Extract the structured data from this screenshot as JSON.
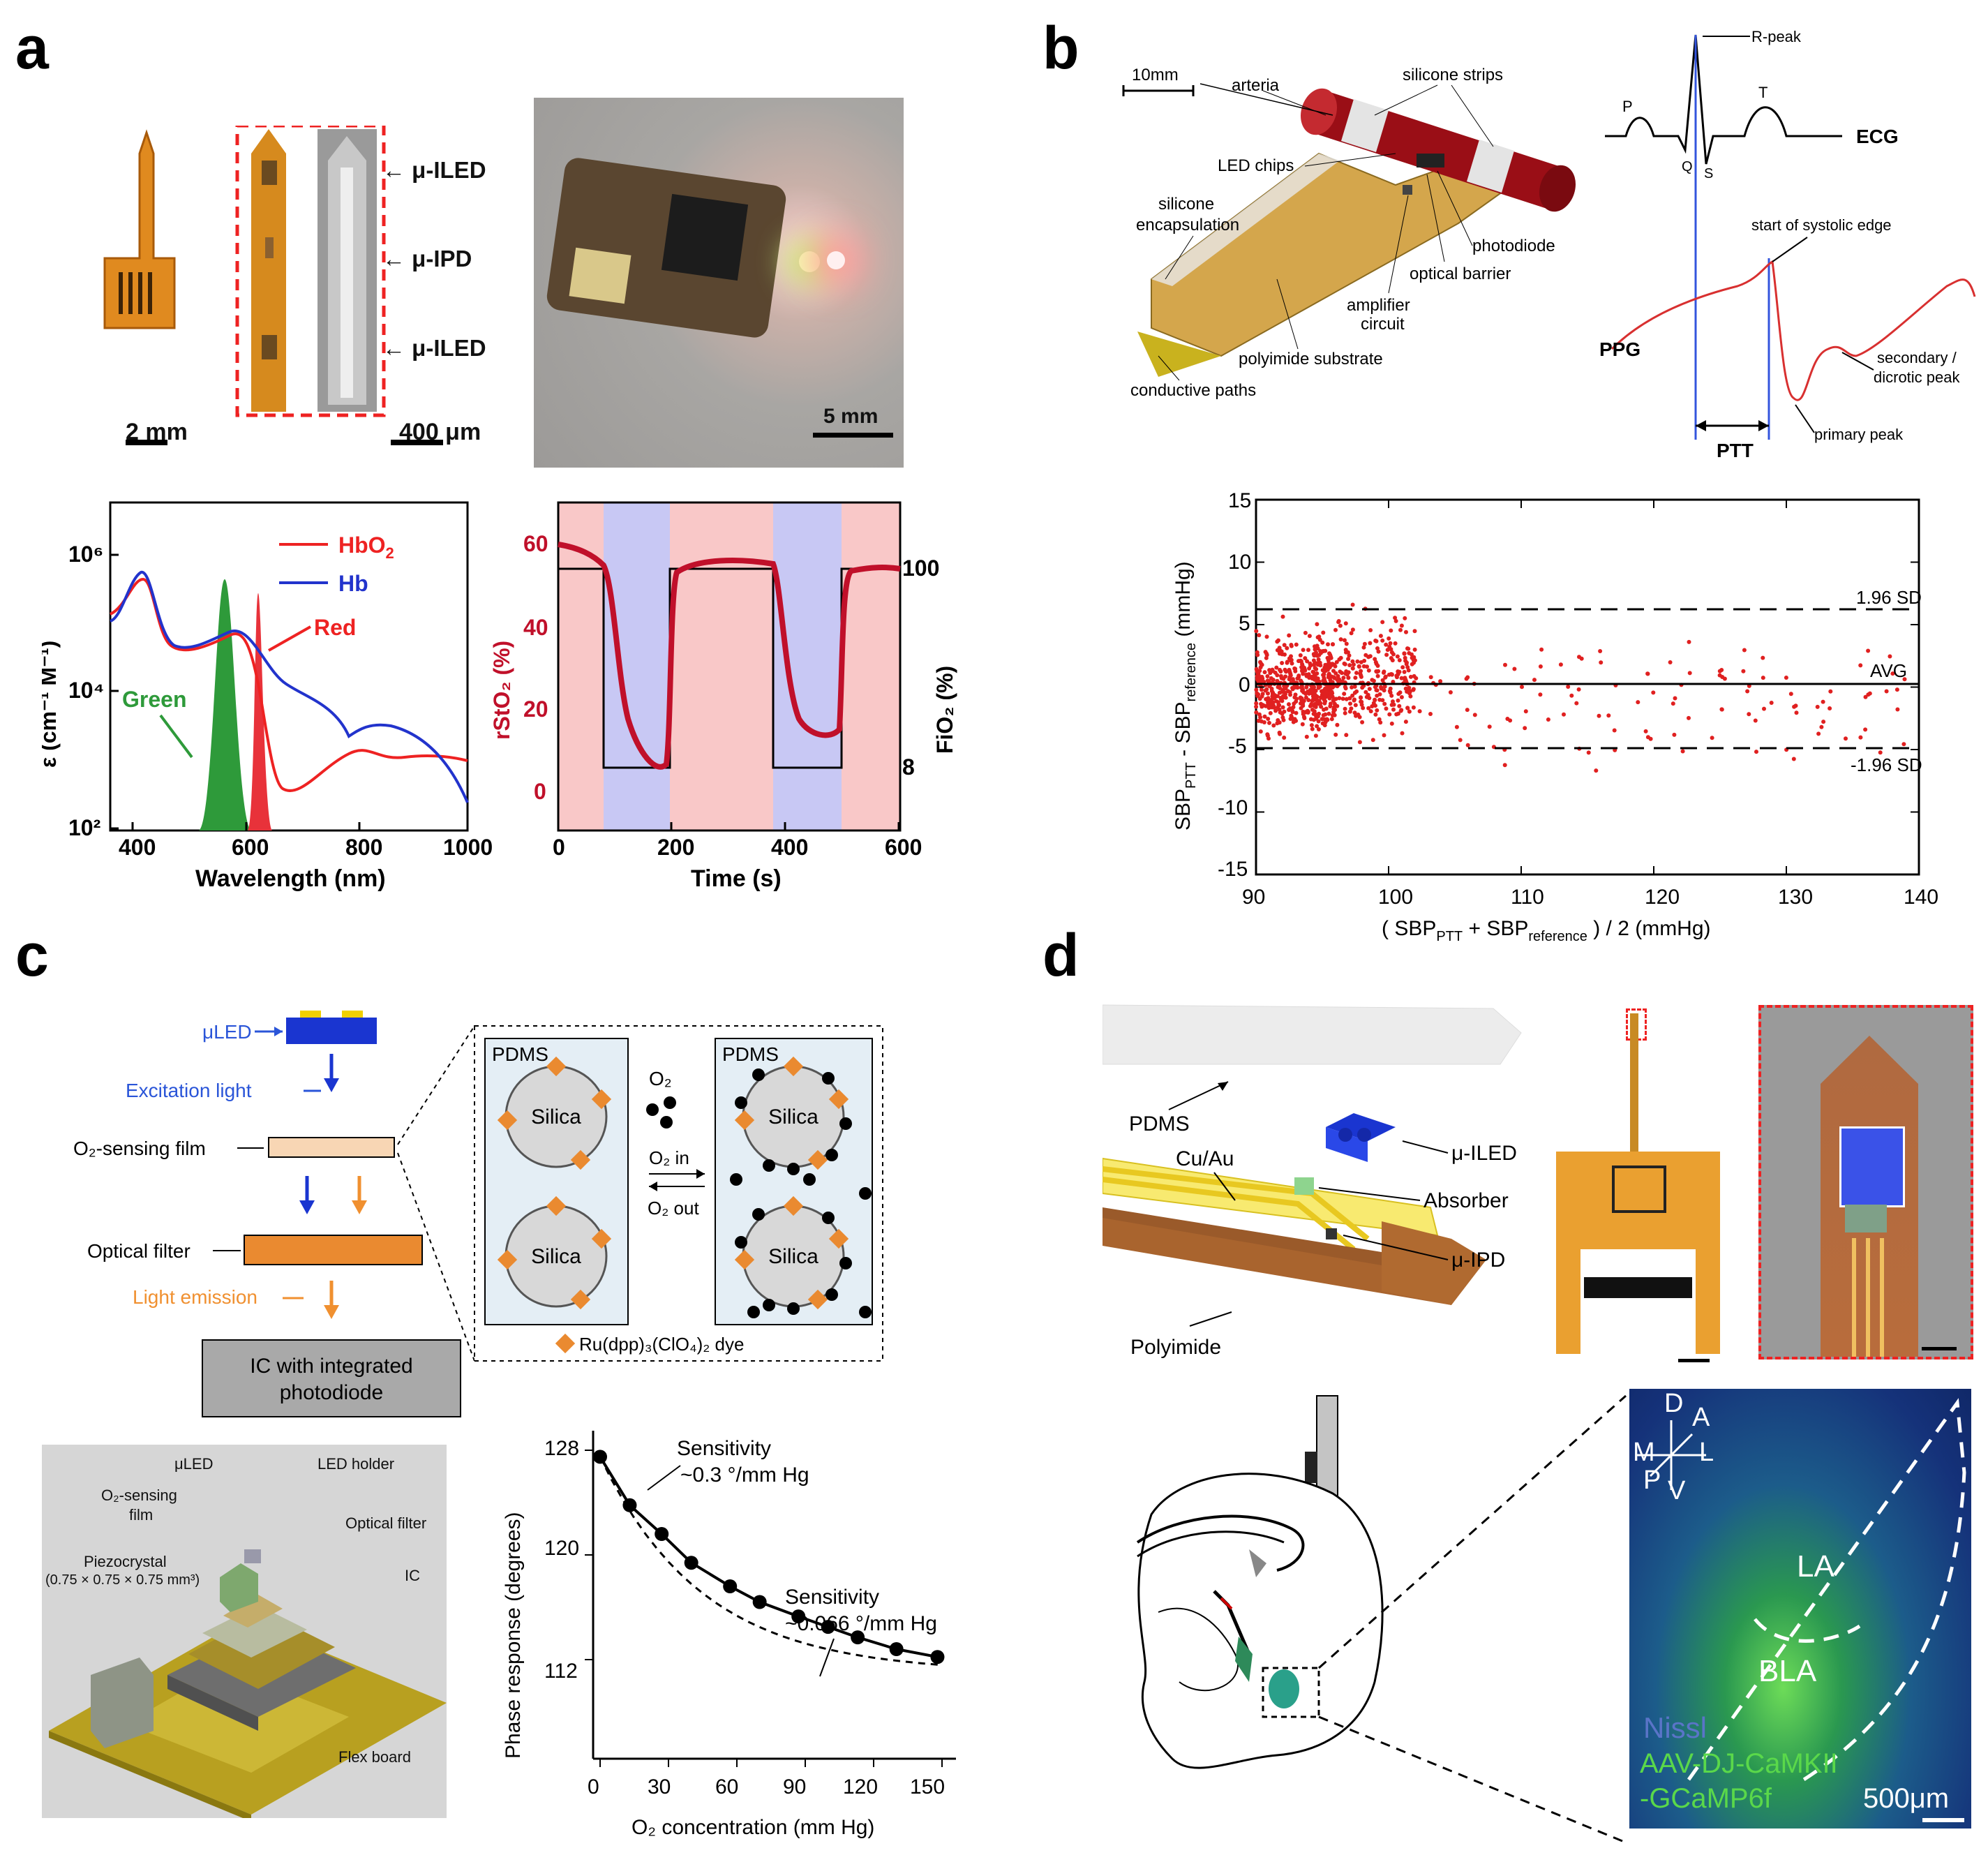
{
  "panel_labels": {
    "a": "a",
    "b": "b",
    "c": "c",
    "d": "d"
  },
  "panel_a": {
    "probe_labels": [
      "μ-ILED",
      "μ-IPD",
      "μ-ILED"
    ],
    "scale_left": "2 mm",
    "scale_mid": "400 μm",
    "scale_photo": "5 mm",
    "spectrum": {
      "legend_hbo2": "HbO",
      "legend_hbo2_sub": "2",
      "legend_hb": "Hb",
      "label_red": "Red",
      "label_green": "Green",
      "xlabel": "Wavelength (nm)",
      "ylabel": "ε (cm⁻¹ M⁻¹)",
      "xticks": [
        "400",
        "600",
        "800",
        "1000"
      ],
      "yticks": [
        "10⁶",
        "10⁴",
        "10²"
      ]
    },
    "time": {
      "xlabel": "Time (s)",
      "ylabel_left": "rStO₂ (%)",
      "ylabel_right": "FiO₂ (%)",
      "xticks": [
        "0",
        "200",
        "400",
        "600"
      ],
      "yticks_left": [
        "60",
        "40",
        "20",
        "0"
      ],
      "yticks_right": [
        "100",
        "8"
      ]
    }
  },
  "panel_b": {
    "device_labels": {
      "scale": "10mm",
      "arteria": "arteria",
      "silicone_strips": "silicone strips",
      "led_chips": "LED chips",
      "silicone_encapsulation_1": "silicone",
      "silicone_encapsulation_2": "encapsulation",
      "photodiode": "photodiode",
      "optical_barrier": "optical barrier",
      "amplifier_1": "amplifier",
      "amplifier_2": "circuit",
      "polyimide": "polyimide substrate",
      "conductive": "conductive paths"
    },
    "waveform_labels": {
      "r_peak": "R-peak",
      "p": "P",
      "q": "Q",
      "s": "S",
      "t": "T",
      "ecg": "ECG",
      "ppg": "PPG",
      "start_systolic": "start of systolic edge",
      "secondary_1": "secondary /",
      "secondary_2": "dicrotic peak",
      "primary": "primary peak",
      "ptt": "PTT"
    },
    "chart": {
      "xticks": [
        "90",
        "100",
        "110",
        "120",
        "130",
        "140"
      ],
      "yticks": [
        "15",
        "10",
        "5",
        "0",
        "-5",
        "-10",
        "-15"
      ],
      "label_upper": "1.96 SD",
      "label_avg": "AVG",
      "label_lower": "-1.96 SD",
      "xlabel": "( SBP",
      "xlabel_sub1": "PTT",
      "xlabel_mid": " + SBP",
      "xlabel_sub2": "reference",
      "xlabel_end": " ) / 2   (mmHg)",
      "ylabel": "SBP",
      "ylabel_sub1": "PTT",
      "ylabel_mid": " - SBP",
      "ylabel_sub2": "reference",
      "ylabel_end": "  (mmHg)"
    }
  },
  "panel_c": {
    "flow": {
      "uled": "μLED",
      "excitation": "Excitation light",
      "film": "O₂-sensing film",
      "filter": "Optical filter",
      "emission": "Light emission",
      "ic_1": "IC with integrated",
      "ic_2": "photodiode"
    },
    "inset": {
      "pdms": "PDMS",
      "silica": "Silica",
      "o2": "O₂",
      "o2_in": "O₂ in",
      "o2_out": "O₂ out",
      "dye": "Ru(dpp)₃(ClO₄)₂ dye"
    },
    "render_labels": {
      "uled": "μLED",
      "led_holder": "LED holder",
      "film_1": "O₂-sensing",
      "film_2": "film",
      "optical_filter": "Optical filter",
      "piezo_1": "Piezocrystal",
      "piezo_2": "(0.75 × 0.75 × 0.75 mm³)",
      "ic": "IC",
      "flex": "Flex board"
    },
    "chart": {
      "xlabel": "O₂ concentration (mm Hg)",
      "ylabel": "Phase response (degrees)",
      "xticks": [
        "0",
        "30",
        "60",
        "90",
        "120",
        "150"
      ],
      "yticks": [
        "128",
        "120",
        "112"
      ],
      "sens1_1": "Sensitivity",
      "sens1_2": "~0.3 °/mm Hg",
      "sens2_1": "Sensitivity",
      "sens2_2": "~0.066 °/mm Hg"
    }
  },
  "panel_d": {
    "labels": {
      "pdms": "PDMS",
      "cuau": "Cu/Au",
      "uiled": "μ-ILED",
      "absorber": "Absorber",
      "uipd": "μ-IPD",
      "polyimide": "Polyimide"
    },
    "histo": {
      "d": "D",
      "a": "A",
      "m": "M",
      "l": "L",
      "p": "P",
      "v": "V",
      "la": "LA",
      "bla": "BLA",
      "nissl": "Nissl",
      "virus_1": "AAV-DJ-CaMKII",
      "virus_2": "-GCaMP6f",
      "scale": "500μm"
    }
  }
}
